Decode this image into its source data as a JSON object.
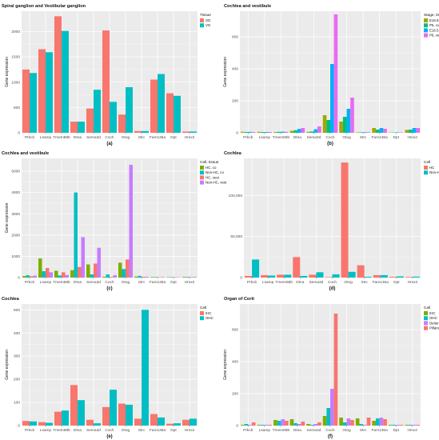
{
  "colors": {
    "panel_bg": "#ebebeb",
    "grid_major": "#ffffff",
    "palette2": [
      "#f8766d",
      "#00bfc4"
    ],
    "palette4": [
      "#7cae00",
      "#00bfc4",
      "#c77cff",
      "#f8766d"
    ],
    "palette5": [
      "#a3a500",
      "#00bf7d",
      "#00b0f6",
      "#e76bf3",
      "#f8766d"
    ]
  },
  "chart_data": [
    {
      "id": "a",
      "type": "bar",
      "title": "Spiral ganglion and Vestibular ganglion",
      "panel_label": "(a)",
      "ylabel": "Gene expression",
      "xlabel": "",
      "ylim": [
        0,
        2400
      ],
      "yticks": [
        0,
        500,
        1000,
        1500,
        2000
      ],
      "ytick_labels": [
        "0",
        "500",
        "1000",
        "1500",
        "2000"
      ],
      "grid": true,
      "legend_title": "Tissue",
      "legend_position": "top-right",
      "categories": [
        "Prkcb",
        "Lsamp",
        "Tmem88b",
        "Dtna",
        "Sema3d",
        "Coch",
        "Otog",
        "Strc",
        "Fam136a",
        "Dpt",
        "Hmx2"
      ],
      "series": [
        {
          "name": "SG",
          "color": "#f8766d",
          "values": [
            1250,
            1650,
            2300,
            220,
            480,
            2020,
            360,
            35,
            1050,
            780,
            25
          ]
        },
        {
          "name": "VG",
          "color": "#00bfc4",
          "values": [
            1180,
            1590,
            2010,
            220,
            850,
            610,
            900,
            35,
            1160,
            730,
            25
          ]
        }
      ]
    },
    {
      "id": "b",
      "type": "bar",
      "title": "Cochlea and vestibule",
      "panel_label": "(b)",
      "ylabel": "Gene expression",
      "xlabel": "",
      "ylim": [
        0,
        760
      ],
      "yticks": [
        0,
        200,
        400,
        600
      ],
      "ytick_labels": [
        "0",
        "200",
        "400",
        "600"
      ],
      "grid": true,
      "legend_title": "Stage, tissue",
      "legend_position": "top-right",
      "categories": [
        "Prkcb",
        "Lsamp",
        "Tmem88b",
        "Dtna",
        "Sema3d",
        "Coch",
        "Otog",
        "Strc",
        "Fam136a",
        "Dpt",
        "Hmx2"
      ],
      "series": [
        {
          "name": "E16.5, co",
          "color": "#a3a500",
          "values": [
            6,
            6,
            5,
            12,
            6,
            110,
            70,
            3,
            30,
            2,
            18
          ]
        },
        {
          "name": "P6, co",
          "color": "#00bf7d",
          "values": [
            5,
            5,
            6,
            16,
            8,
            80,
            100,
            3,
            20,
            2,
            20
          ]
        },
        {
          "name": "E16.5, vest",
          "color": "#00b0f6",
          "values": [
            6,
            5,
            7,
            24,
            22,
            430,
            150,
            4,
            30,
            3,
            30
          ]
        },
        {
          "name": "P6, vest",
          "color": "#e76bf3",
          "values": [
            5,
            5,
            6,
            30,
            40,
            740,
            220,
            4,
            25,
            3,
            30
          ]
        }
      ]
    },
    {
      "id": "c",
      "type": "bar",
      "title": "Cochlea and vestibule",
      "panel_label": "(c)",
      "ylabel": "Gene expression",
      "xlabel": "",
      "ylim": [
        0,
        5600
      ],
      "yticks": [
        0,
        1000,
        2000,
        3000,
        4000,
        5000
      ],
      "ytick_labels": [
        "0",
        "1000",
        "2000",
        "3000",
        "4000",
        "5000"
      ],
      "grid": true,
      "legend_title": "Cell, tissue",
      "legend_position": "top-right",
      "categories": [
        "Prkcb",
        "Lsamp",
        "Tmem88b",
        "Dtna",
        "Sema3d",
        "Coch",
        "Otog",
        "Strc",
        "Fam136a",
        "Dpt",
        "Hmx2"
      ],
      "series": [
        {
          "name": "HC, co",
          "color": "#7cae00",
          "values": [
            70,
            900,
            320,
            350,
            620,
            40,
            700,
            50,
            25,
            20,
            30
          ]
        },
        {
          "name": "Non-HC, co",
          "color": "#00bfc4",
          "values": [
            110,
            300,
            100,
            4000,
            150,
            150,
            400,
            80,
            25,
            20,
            30
          ]
        },
        {
          "name": "HC, vest",
          "color": "#f8766d",
          "values": [
            60,
            450,
            250,
            500,
            660,
            30,
            850,
            40,
            20,
            20,
            25
          ]
        },
        {
          "name": "Non-HC, vest",
          "color": "#c77cff",
          "values": [
            90,
            250,
            120,
            1900,
            1400,
            110,
            5300,
            40,
            25,
            15,
            30
          ]
        }
      ]
    },
    {
      "id": "d",
      "type": "bar",
      "title": "Cochlea",
      "panel_label": "(d)",
      "ylabel": "",
      "xlabel": "",
      "ylim": [
        0,
        145000
      ],
      "yticks": [
        0,
        50000,
        100000
      ],
      "ytick_labels": [
        "0",
        "50,000",
        "100,000"
      ],
      "grid": true,
      "legend_title": "Cell",
      "legend_position": "top-right",
      "categories": [
        "Prkcb",
        "Lsamp",
        "Tmem88b",
        "Dtna",
        "Sema3d",
        "Coch",
        "Otog",
        "Strc",
        "Fam136a",
        "Dpt",
        "Hmx2"
      ],
      "series": [
        {
          "name": "HC",
          "color": "#f8766d",
          "values": [
            2000,
            3000,
            3500,
            25000,
            3500,
            600,
            140000,
            15000,
            3000,
            1000,
            800
          ]
        },
        {
          "name": "Non-HC",
          "color": "#00bfc4",
          "values": [
            22000,
            2500,
            3500,
            2000,
            6500,
            4000,
            7000,
            1000,
            3000,
            1500,
            1200
          ]
        }
      ]
    },
    {
      "id": "e",
      "type": "bar",
      "title": "Cochlea",
      "panel_label": "(e)",
      "ylabel": "Gene expression",
      "xlabel": "",
      "ylim": [
        0,
        525
      ],
      "yticks": [
        0,
        100,
        200,
        300,
        400,
        500
      ],
      "ytick_labels": [
        "0",
        "100",
        "200",
        "300",
        "400",
        "500"
      ],
      "grid": true,
      "legend_title": "Cell",
      "legend_position": "top-right",
      "categories": [
        "Prkcb",
        "Lsamp",
        "Tmem88b",
        "Dtna",
        "Sema3d",
        "Coch",
        "Otog",
        "Strc",
        "Fam136a",
        "Dpt",
        "Hmx2"
      ],
      "series": [
        {
          "name": "IHC",
          "color": "#f8766d",
          "values": [
            20,
            15,
            60,
            175,
            25,
            80,
            95,
            30,
            50,
            8,
            25
          ]
        },
        {
          "name": "OHC",
          "color": "#00bfc4",
          "values": [
            18,
            12,
            65,
            110,
            10,
            155,
            90,
            500,
            35,
            10,
            30
          ]
        }
      ]
    },
    {
      "id": "f",
      "type": "bar",
      "title": "Organ of Corti",
      "panel_label": "(f)",
      "ylabel": "Gene expression",
      "xlabel": "",
      "ylim": [
        0,
        760
      ],
      "yticks": [
        0,
        200,
        400,
        600
      ],
      "ytick_labels": [
        "0",
        "200",
        "400",
        "600"
      ],
      "grid": true,
      "legend_title": "Cell",
      "legend_position": "top-right",
      "categories": [
        "Prkcb",
        "Lsamp",
        "Tmem88b",
        "Dtna",
        "Sema3d",
        "Coch",
        "Otog",
        "Strc",
        "Fam136a",
        "Dpt",
        "Hmx2"
      ],
      "series": [
        {
          "name": "IHC",
          "color": "#7cae00",
          "values": [
            5,
            5,
            35,
            40,
            10,
            60,
            50,
            45,
            30,
            5,
            5
          ]
        },
        {
          "name": "OHC",
          "color": "#00bfc4",
          "values": [
            10,
            5,
            30,
            15,
            5,
            110,
            20,
            10,
            45,
            5,
            5
          ]
        },
        {
          "name": "Deiters",
          "color": "#c77cff",
          "values": [
            5,
            5,
            40,
            10,
            10,
            230,
            45,
            5,
            50,
            5,
            5
          ]
        },
        {
          "name": "Pillars",
          "color": "#f8766d",
          "values": [
            20,
            5,
            30,
            25,
            20,
            700,
            35,
            50,
            40,
            5,
            5
          ]
        }
      ]
    }
  ]
}
